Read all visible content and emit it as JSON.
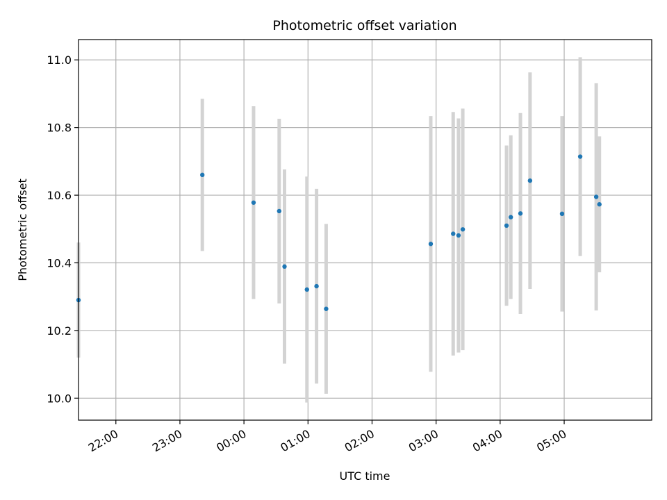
{
  "chart_data": {
    "type": "scatter",
    "title": "Photometric offset variation",
    "xlabel": "UTC time",
    "ylabel": "Photometric offset",
    "grid": true,
    "x_ticks": [
      "22:00",
      "23:00",
      "00:00",
      "01:00",
      "02:00",
      "03:00",
      "04:00",
      "05:00"
    ],
    "y_ticks": [
      "10.0",
      "10.2",
      "10.4",
      "10.6",
      "10.8",
      "11.0"
    ],
    "xlim": [
      "21:25",
      "06:22"
    ],
    "ylim": [
      9.935,
      11.06
    ],
    "colors": {
      "point": "#1f77b4",
      "errorbar": "#d3d3d3",
      "grid": "#b0b0b0"
    },
    "points": [
      {
        "time": "21:25",
        "y": 10.29,
        "err_low": 10.12,
        "err_high": 10.46
      },
      {
        "time": "23:21",
        "y": 10.66,
        "err_low": 10.435,
        "err_high": 10.885
      },
      {
        "time": "00:09",
        "y": 10.578,
        "err_low": 10.293,
        "err_high": 10.863
      },
      {
        "time": "00:33",
        "y": 10.553,
        "err_low": 10.28,
        "err_high": 10.826
      },
      {
        "time": "00:38",
        "y": 10.389,
        "err_low": 10.102,
        "err_high": 10.676
      },
      {
        "time": "00:59",
        "y": 10.321,
        "err_low": 9.987,
        "err_high": 10.655
      },
      {
        "time": "01:08",
        "y": 10.331,
        "err_low": 10.043,
        "err_high": 10.619
      },
      {
        "time": "01:17",
        "y": 10.264,
        "err_low": 10.013,
        "err_high": 10.515
      },
      {
        "time": "02:55",
        "y": 10.456,
        "err_low": 10.078,
        "err_high": 10.834
      },
      {
        "time": "03:16",
        "y": 10.486,
        "err_low": 10.126,
        "err_high": 10.846
      },
      {
        "time": "03:21",
        "y": 10.481,
        "err_low": 10.135,
        "err_high": 10.827
      },
      {
        "time": "03:25",
        "y": 10.499,
        "err_low": 10.142,
        "err_high": 10.856
      },
      {
        "time": "04:06",
        "y": 10.51,
        "err_low": 10.273,
        "err_high": 10.747
      },
      {
        "time": "04:10",
        "y": 10.535,
        "err_low": 10.293,
        "err_high": 10.777
      },
      {
        "time": "04:19",
        "y": 10.546,
        "err_low": 10.249,
        "err_high": 10.843
      },
      {
        "time": "04:28",
        "y": 10.643,
        "err_low": 10.323,
        "err_high": 10.963
      },
      {
        "time": "04:58",
        "y": 10.545,
        "err_low": 10.256,
        "err_high": 10.834
      },
      {
        "time": "05:15",
        "y": 10.714,
        "err_low": 10.42,
        "err_high": 11.008
      },
      {
        "time": "05:30",
        "y": 10.595,
        "err_low": 10.259,
        "err_high": 10.931
      },
      {
        "time": "05:33",
        "y": 10.573,
        "err_low": 10.372,
        "err_high": 10.774
      }
    ]
  }
}
